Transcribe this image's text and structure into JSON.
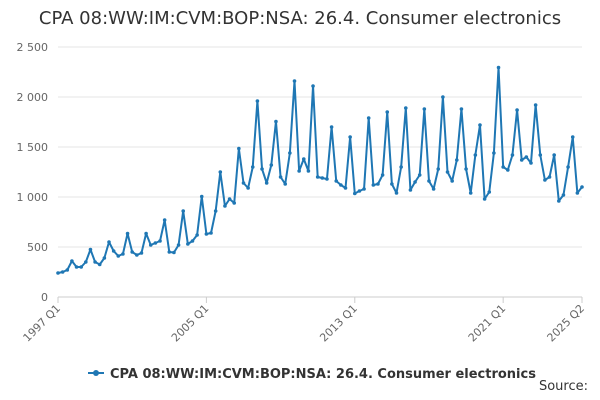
{
  "chart_data": {
    "type": "line",
    "title": "CPA 08:WW:IM:CVM:BOP:NSA: 26.4. Consumer electronics",
    "xlabel": "",
    "ylabel": "",
    "ylim": [
      0,
      2500
    ],
    "y_ticks": [
      0,
      500,
      1000,
      1500,
      2000,
      2500
    ],
    "y_tick_labels": [
      "0",
      "500",
      "1 000",
      "1 500",
      "2 000",
      "2 500"
    ],
    "x_tick_labels": [
      {
        "label": "1997 Q1",
        "index": 0
      },
      {
        "label": "2005 Q1",
        "index": 32
      },
      {
        "label": "2013 Q1",
        "index": 64
      },
      {
        "label": "2021 Q1",
        "index": 96
      },
      {
        "label": "2025 Q2",
        "index": 113
      }
    ],
    "grid": true,
    "legend_position": "bottom",
    "series": [
      {
        "name": "CPA 08:WW:IM:CVM:BOP:NSA: 26.4. Consumer electronics",
        "color": "#1f77b4",
        "values": [
          240,
          250,
          270,
          360,
          300,
          300,
          350,
          475,
          350,
          325,
          390,
          550,
          460,
          410,
          430,
          635,
          450,
          420,
          440,
          635,
          520,
          540,
          560,
          770,
          450,
          445,
          520,
          860,
          530,
          560,
          620,
          1005,
          630,
          640,
          860,
          1250,
          910,
          980,
          940,
          1485,
          1140,
          1090,
          1300,
          1960,
          1280,
          1140,
          1320,
          1755,
          1200,
          1130,
          1440,
          2160,
          1260,
          1380,
          1260,
          2110,
          1200,
          1190,
          1180,
          1700,
          1160,
          1120,
          1090,
          1600,
          1035,
          1060,
          1080,
          1790,
          1120,
          1130,
          1220,
          1850,
          1130,
          1040,
          1300,
          1890,
          1070,
          1150,
          1220,
          1880,
          1160,
          1080,
          1280,
          2000,
          1250,
          1160,
          1370,
          1880,
          1280,
          1040,
          1420,
          1720,
          980,
          1050,
          1440,
          2295,
          1300,
          1270,
          1420,
          1870,
          1370,
          1400,
          1340,
          1920,
          1420,
          1170,
          1200,
          1420,
          960,
          1020,
          1300,
          1600,
          1040,
          1100
        ]
      }
    ]
  },
  "source_label": "Source:"
}
